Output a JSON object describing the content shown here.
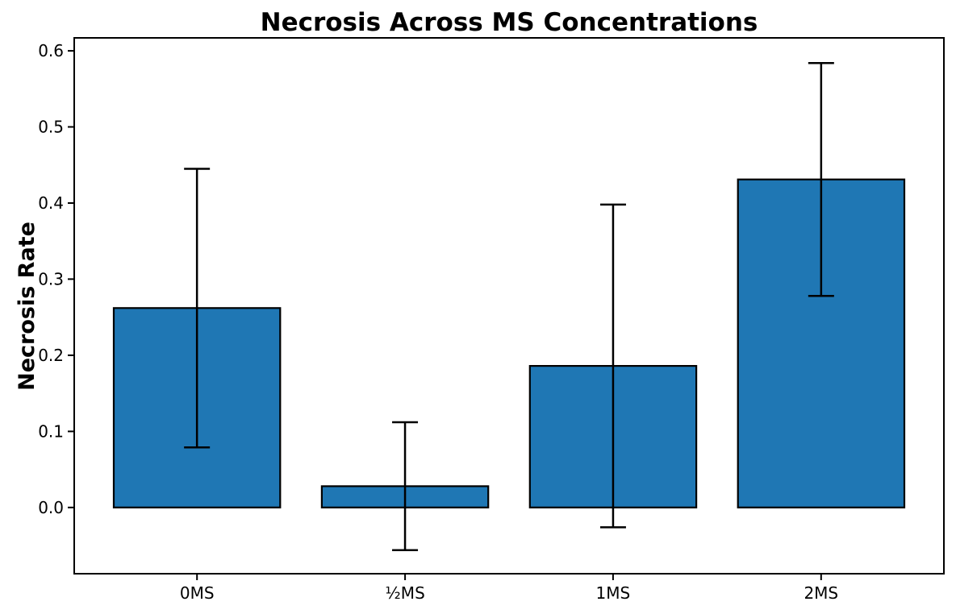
{
  "figure": {
    "background": "#ffffff",
    "text_color": "#000000"
  },
  "chart_data": {
    "type": "bar",
    "title": "Necrosis Across MS Concentrations",
    "ylabel": "Necrosis Rate",
    "xlabel": "",
    "categories": [
      "0MS",
      "½MS",
      "1MS",
      "2MS"
    ],
    "values": [
      0.262,
      0.028,
      0.186,
      0.431
    ],
    "errors": [
      0.183,
      0.084,
      0.212,
      0.153
    ],
    "error_ranges": [
      [
        0.078,
        0.445
      ],
      [
        -0.056,
        0.112
      ],
      [
        -0.027,
        0.398
      ],
      [
        0.278,
        0.584
      ]
    ],
    "yticks": [
      0.0,
      0.1,
      0.2,
      0.3,
      0.4,
      0.5,
      0.6
    ],
    "ylim": [
      -0.087,
      0.617
    ],
    "xlim": [
      -0.59,
      3.59
    ],
    "bar_width": 0.8,
    "bar_color": "#1f77b4",
    "bar_edge_color": "#000000",
    "error_color": "#000000",
    "axis_color": "#000000",
    "grid": false,
    "legend": "none"
  }
}
